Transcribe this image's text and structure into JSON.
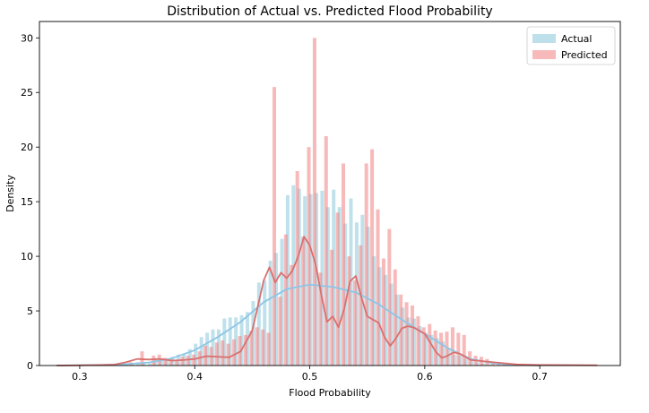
{
  "chart_data": {
    "type": "histogram",
    "title": "Distribution of Actual vs. Predicted Flood Probability",
    "xlabel": "Flood Probability",
    "ylabel": "Density",
    "xlim": [
      0.265,
      0.77
    ],
    "ylim": [
      0,
      31.5
    ],
    "xticks": [
      0.3,
      0.4,
      0.5,
      0.6,
      0.7
    ],
    "yticks": [
      0,
      5,
      10,
      15,
      20,
      25,
      30
    ],
    "legend": {
      "position": "top-right"
    },
    "series": [
      {
        "name": "Actual",
        "color": "#add8e6",
        "line_color": "#8ec5e6",
        "bins": [
          [
            0.3375,
            0.1
          ],
          [
            0.3425,
            0.1
          ],
          [
            0.3475,
            0.2
          ],
          [
            0.3525,
            0.3
          ],
          [
            0.3575,
            0.3
          ],
          [
            0.3625,
            0.2
          ],
          [
            0.3675,
            0.5
          ],
          [
            0.3725,
            0.5
          ],
          [
            0.3775,
            0.6
          ],
          [
            0.3825,
            0.8
          ],
          [
            0.3875,
            1.0
          ],
          [
            0.3925,
            1.1
          ],
          [
            0.3975,
            1.5
          ],
          [
            0.4025,
            2.0
          ],
          [
            0.4075,
            2.6
          ],
          [
            0.4125,
            3.0
          ],
          [
            0.4175,
            3.3
          ],
          [
            0.4225,
            3.3
          ],
          [
            0.4275,
            4.3
          ],
          [
            0.4325,
            4.4
          ],
          [
            0.4375,
            4.4
          ],
          [
            0.4425,
            4.6
          ],
          [
            0.4475,
            4.9
          ],
          [
            0.4525,
            5.9
          ],
          [
            0.4575,
            7.6
          ],
          [
            0.4625,
            7.8
          ],
          [
            0.4675,
            9.6
          ],
          [
            0.4725,
            10.3
          ],
          [
            0.4775,
            11.6
          ],
          [
            0.4825,
            15.6
          ],
          [
            0.4875,
            16.5
          ],
          [
            0.4925,
            16.2
          ],
          [
            0.4975,
            15.5
          ],
          [
            0.5025,
            15.7
          ],
          [
            0.5075,
            15.8
          ],
          [
            0.5125,
            16.0
          ],
          [
            0.5175,
            14.5
          ],
          [
            0.5225,
            16.1
          ],
          [
            0.5275,
            14.5
          ],
          [
            0.5325,
            13.0
          ],
          [
            0.5375,
            15.3
          ],
          [
            0.5425,
            13.1
          ],
          [
            0.5475,
            13.8
          ],
          [
            0.5525,
            12.7
          ],
          [
            0.5575,
            10.0
          ],
          [
            0.5625,
            9.0
          ],
          [
            0.5675,
            8.3
          ],
          [
            0.5725,
            7.5
          ],
          [
            0.5775,
            6.5
          ],
          [
            0.5825,
            5.3
          ],
          [
            0.5875,
            4.4
          ],
          [
            0.5925,
            4.3
          ],
          [
            0.5975,
            3.6
          ],
          [
            0.6025,
            3.0
          ],
          [
            0.6075,
            2.8
          ],
          [
            0.6125,
            2.5
          ],
          [
            0.6175,
            2.2
          ],
          [
            0.6225,
            1.6
          ],
          [
            0.6275,
            1.0
          ],
          [
            0.6325,
            0.9
          ],
          [
            0.6375,
            0.6
          ],
          [
            0.6425,
            0.4
          ],
          [
            0.6475,
            0.3
          ],
          [
            0.6525,
            0.2
          ],
          [
            0.6575,
            0.1
          ]
        ],
        "kde": [
          [
            0.28,
            0.0
          ],
          [
            0.3,
            0.03
          ],
          [
            0.32,
            0.06
          ],
          [
            0.34,
            0.12
          ],
          [
            0.36,
            0.28
          ],
          [
            0.38,
            0.65
          ],
          [
            0.4,
            1.4
          ],
          [
            0.42,
            2.6
          ],
          [
            0.44,
            4.0
          ],
          [
            0.46,
            5.8
          ],
          [
            0.48,
            7.0
          ],
          [
            0.5,
            7.4
          ],
          [
            0.52,
            7.2
          ],
          [
            0.54,
            6.7
          ],
          [
            0.56,
            5.6
          ],
          [
            0.58,
            4.2
          ],
          [
            0.6,
            2.9
          ],
          [
            0.62,
            1.6
          ],
          [
            0.64,
            0.6
          ],
          [
            0.66,
            0.2
          ],
          [
            0.68,
            0.05
          ],
          [
            0.7,
            0.0
          ]
        ]
      },
      {
        "name": "Predicted",
        "color": "#f08080",
        "line_color": "#d9706e",
        "bins": [
          [
            0.3425,
            0.3
          ],
          [
            0.3525,
            1.3
          ],
          [
            0.3625,
            0.9
          ],
          [
            0.3675,
            1.0
          ],
          [
            0.3725,
            0.7
          ],
          [
            0.3775,
            0.6
          ],
          [
            0.3825,
            0.5
          ],
          [
            0.3875,
            0.8
          ],
          [
            0.3925,
            0.9
          ],
          [
            0.3975,
            1.0
          ],
          [
            0.4025,
            1.3
          ],
          [
            0.4075,
            1.8
          ],
          [
            0.4125,
            1.7
          ],
          [
            0.4175,
            2.1
          ],
          [
            0.4225,
            2.3
          ],
          [
            0.4275,
            2.0
          ],
          [
            0.4325,
            2.4
          ],
          [
            0.4375,
            2.7
          ],
          [
            0.4425,
            2.8
          ],
          [
            0.4475,
            3.2
          ],
          [
            0.4525,
            3.5
          ],
          [
            0.4575,
            3.3
          ],
          [
            0.4625,
            3.0
          ],
          [
            0.4675,
            25.5
          ],
          [
            0.4725,
            6.3
          ],
          [
            0.4775,
            12.0
          ],
          [
            0.4825,
            9.2
          ],
          [
            0.4875,
            17.8
          ],
          [
            0.4925,
            11.8
          ],
          [
            0.4975,
            20.0
          ],
          [
            0.5025,
            30.0
          ],
          [
            0.5075,
            8.5
          ],
          [
            0.5125,
            21.0
          ],
          [
            0.5175,
            10.6
          ],
          [
            0.5225,
            14.0
          ],
          [
            0.5275,
            18.5
          ],
          [
            0.5325,
            10.0
          ],
          [
            0.5375,
            7.8
          ],
          [
            0.5425,
            11.0
          ],
          [
            0.5475,
            18.5
          ],
          [
            0.5525,
            19.8
          ],
          [
            0.5575,
            14.3
          ],
          [
            0.5625,
            9.8
          ],
          [
            0.5675,
            12.5
          ],
          [
            0.5725,
            8.8
          ],
          [
            0.5775,
            6.5
          ],
          [
            0.5825,
            5.8
          ],
          [
            0.5875,
            5.5
          ],
          [
            0.5925,
            4.5
          ],
          [
            0.5975,
            3.5
          ],
          [
            0.6025,
            3.8
          ],
          [
            0.6075,
            3.2
          ],
          [
            0.6125,
            3.0
          ],
          [
            0.6175,
            3.1
          ],
          [
            0.6225,
            3.5
          ],
          [
            0.6275,
            3.0
          ],
          [
            0.6325,
            2.8
          ],
          [
            0.6375,
            1.3
          ],
          [
            0.6425,
            0.9
          ],
          [
            0.6475,
            0.8
          ],
          [
            0.6525,
            0.6
          ],
          [
            0.6575,
            0.3
          ],
          [
            0.6625,
            0.3
          ],
          [
            0.6675,
            0.2
          ],
          [
            0.6725,
            0.1
          ]
        ],
        "kde": [
          [
            0.28,
            0.0
          ],
          [
            0.3,
            0.02
          ],
          [
            0.32,
            0.05
          ],
          [
            0.33,
            0.08
          ],
          [
            0.34,
            0.3
          ],
          [
            0.35,
            0.6
          ],
          [
            0.36,
            0.55
          ],
          [
            0.37,
            0.6
          ],
          [
            0.38,
            0.45
          ],
          [
            0.39,
            0.5
          ],
          [
            0.4,
            0.6
          ],
          [
            0.41,
            0.85
          ],
          [
            0.42,
            0.8
          ],
          [
            0.43,
            0.75
          ],
          [
            0.44,
            1.3
          ],
          [
            0.45,
            3.2
          ],
          [
            0.46,
            7.8
          ],
          [
            0.465,
            9.0
          ],
          [
            0.47,
            7.6
          ],
          [
            0.475,
            8.5
          ],
          [
            0.48,
            8.0
          ],
          [
            0.485,
            8.7
          ],
          [
            0.49,
            10.0
          ],
          [
            0.495,
            11.8
          ],
          [
            0.5,
            11.0
          ],
          [
            0.505,
            9.3
          ],
          [
            0.51,
            6.5
          ],
          [
            0.515,
            4.0
          ],
          [
            0.52,
            4.5
          ],
          [
            0.525,
            3.5
          ],
          [
            0.53,
            5.2
          ],
          [
            0.535,
            7.7
          ],
          [
            0.54,
            8.2
          ],
          [
            0.545,
            6.2
          ],
          [
            0.55,
            4.5
          ],
          [
            0.56,
            3.9
          ],
          [
            0.565,
            2.6
          ],
          [
            0.57,
            1.8
          ],
          [
            0.575,
            2.5
          ],
          [
            0.58,
            3.4
          ],
          [
            0.585,
            3.6
          ],
          [
            0.59,
            3.5
          ],
          [
            0.6,
            2.9
          ],
          [
            0.61,
            1.2
          ],
          [
            0.615,
            0.7
          ],
          [
            0.62,
            0.9
          ],
          [
            0.625,
            1.2
          ],
          [
            0.63,
            1.1
          ],
          [
            0.64,
            0.5
          ],
          [
            0.66,
            0.3
          ],
          [
            0.68,
            0.1
          ],
          [
            0.7,
            0.05
          ],
          [
            0.75,
            0.02
          ]
        ]
      }
    ]
  }
}
